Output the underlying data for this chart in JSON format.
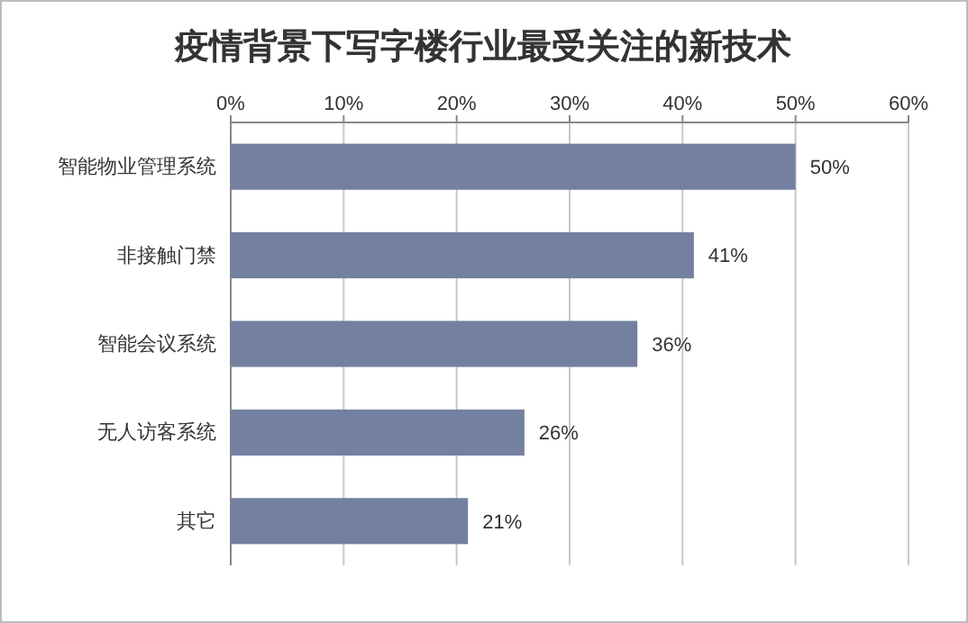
{
  "chart_data": {
    "type": "bar",
    "orientation": "horizontal",
    "title": "疫情背景下写字楼行业最受关注的新技术",
    "categories": [
      "智能物业管理系统",
      "非接触门禁",
      "智能会议系统",
      "无人访客系统",
      "其它"
    ],
    "values": [
      50,
      41,
      36,
      26,
      21
    ],
    "value_labels": [
      "50%",
      "41%",
      "36%",
      "26%",
      "21%"
    ],
    "color": "#7480a0",
    "xlim": [
      0,
      60
    ],
    "xticks": [
      {
        "value": 0,
        "label": "0%"
      },
      {
        "value": 10,
        "label": "10%"
      },
      {
        "value": 20,
        "label": "20%"
      },
      {
        "value": 30,
        "label": "30%"
      },
      {
        "value": 40,
        "label": "40%"
      },
      {
        "value": 50,
        "label": "50%"
      },
      {
        "value": 60,
        "label": "60%"
      }
    ],
    "grid": true
  }
}
